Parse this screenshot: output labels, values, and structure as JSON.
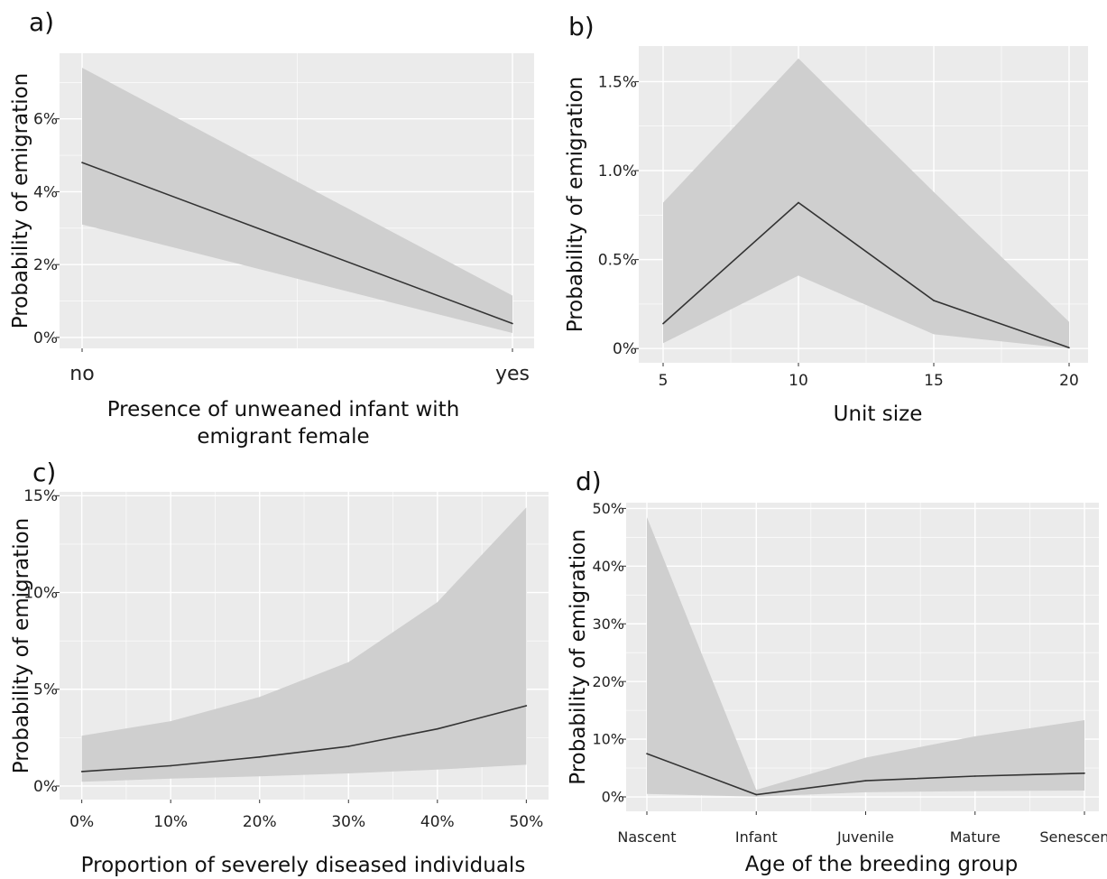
{
  "chart_data": [
    {
      "panel_label": "a)",
      "type": "line",
      "xlabel": [
        "Presence of unweaned infant with",
        "emigrant female"
      ],
      "ylabel": "Probability of emigration",
      "categories": [
        "no",
        "yes"
      ],
      "y_ticks": [
        0,
        2,
        4,
        6
      ],
      "y_tick_labels": [
        "0%",
        "2%",
        "4%",
        "6%"
      ],
      "ylim": [
        -0.3,
        7.8
      ],
      "series": [
        {
          "values": [
            4.8,
            0.38
          ],
          "lower": [
            3.1,
            0.12
          ],
          "upper": [
            7.4,
            1.15
          ]
        }
      ]
    },
    {
      "panel_label": "b)",
      "type": "line",
      "xlabel": [
        "Unit size"
      ],
      "ylabel": "Probability of emigration",
      "x": [
        5,
        10,
        15,
        20
      ],
      "x_ticks": [
        5,
        10,
        15,
        20
      ],
      "x_tick_labels": [
        "5",
        "10",
        "15",
        "20"
      ],
      "xlim": [
        4.1,
        20.7
      ],
      "y_ticks": [
        0,
        0.5,
        1.0,
        1.5
      ],
      "y_tick_labels": [
        "0%",
        "0.5%",
        "1.0%",
        "1.5%"
      ],
      "ylim": [
        -0.08,
        1.7
      ],
      "series": [
        {
          "values": [
            0.14,
            0.82,
            0.27,
            0.005
          ],
          "lower": [
            0.03,
            0.41,
            0.08,
            0.0
          ],
          "upper": [
            0.82,
            1.63,
            0.88,
            0.15
          ]
        }
      ]
    },
    {
      "panel_label": "c)",
      "type": "line",
      "xlabel": [
        "Proportion of severely diseased individuals"
      ],
      "ylabel": "Probability of emigration",
      "x": [
        0,
        10,
        20,
        30,
        40,
        50
      ],
      "x_ticks": [
        0,
        10,
        20,
        30,
        40,
        50
      ],
      "x_tick_labels": [
        "0%",
        "10%",
        "20%",
        "30%",
        "40%",
        "50%"
      ],
      "xlim": [
        -2.5,
        52.5
      ],
      "y_ticks": [
        0,
        5,
        10,
        15
      ],
      "y_tick_labels": [
        "0%",
        "5%",
        "10%",
        "15%"
      ],
      "ylim": [
        -0.7,
        15.2
      ],
      "series": [
        {
          "values": [
            0.75,
            1.05,
            1.5,
            2.05,
            2.95,
            4.15
          ],
          "lower": [
            0.22,
            0.38,
            0.5,
            0.65,
            0.85,
            1.1
          ],
          "upper": [
            2.6,
            3.35,
            4.6,
            6.4,
            9.5,
            14.4
          ]
        }
      ]
    },
    {
      "panel_label": "d)",
      "type": "line",
      "xlabel": [
        "Age of the breeding group"
      ],
      "ylabel": "Probability of emigration",
      "categories": [
        "Nascent",
        "Infant",
        "Juvenile",
        "Mature",
        "Senescent"
      ],
      "y_ticks": [
        0,
        10,
        20,
        30,
        40,
        50
      ],
      "y_tick_labels": [
        "0%",
        "10%",
        "20%",
        "30%",
        "40%",
        "50%"
      ],
      "ylim": [
        -2.5,
        51
      ],
      "series": [
        {
          "values": [
            7.5,
            0.4,
            2.8,
            3.6,
            4.1
          ],
          "lower": [
            0.5,
            0.05,
            0.8,
            1.0,
            1.1
          ],
          "upper": [
            48.5,
            1.2,
            6.8,
            10.5,
            13.3
          ]
        }
      ]
    }
  ]
}
